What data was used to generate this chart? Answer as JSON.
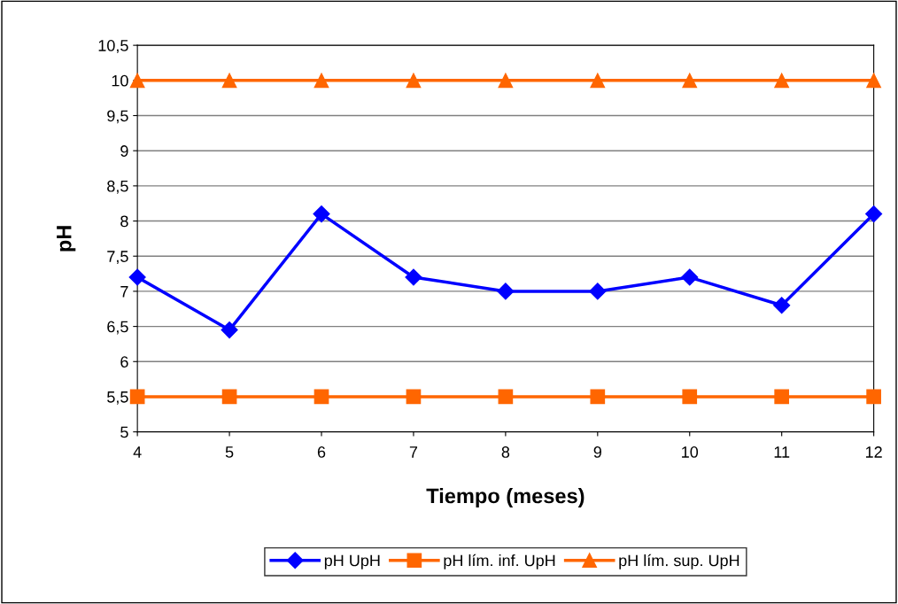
{
  "chart_data": {
    "type": "line",
    "xlabel": "Tiempo (meses)",
    "ylabel": "pH",
    "x": [
      4,
      5,
      6,
      7,
      8,
      9,
      10,
      11,
      12
    ],
    "series": [
      {
        "name": "pH UpH",
        "color": "#0000ff",
        "marker": "diamond",
        "values": [
          7.2,
          6.45,
          8.1,
          7.2,
          7.0,
          7.0,
          7.2,
          6.8,
          8.1
        ]
      },
      {
        "name": "pH lím. inf. UpH",
        "color": "#ff6600",
        "marker": "square",
        "values": [
          5.5,
          5.5,
          5.5,
          5.5,
          5.5,
          5.5,
          5.5,
          5.5,
          5.5
        ]
      },
      {
        "name": "pH lím. sup. UpH",
        "color": "#ff6600",
        "marker": "triangle",
        "values": [
          10,
          10,
          10,
          10,
          10,
          10,
          10,
          10,
          10
        ]
      }
    ],
    "xlim": [
      4,
      12
    ],
    "xticks": [
      4,
      5,
      6,
      7,
      8,
      9,
      10,
      11,
      12
    ],
    "ylim": [
      5,
      10.5
    ],
    "yticks": [
      5,
      {
        "value": 5.5,
        "label": "5,5"
      },
      6,
      {
        "value": 6.5,
        "label": "6,5"
      },
      7,
      {
        "value": 7.5,
        "label": "7,5"
      },
      8,
      {
        "value": 8.5,
        "label": "8,5"
      },
      9,
      {
        "value": 9.5,
        "label": "9,5"
      },
      10,
      {
        "value": 10.5,
        "label": "10,5"
      }
    ],
    "grid": "y",
    "legend": "bottom",
    "line_style": "solid"
  }
}
